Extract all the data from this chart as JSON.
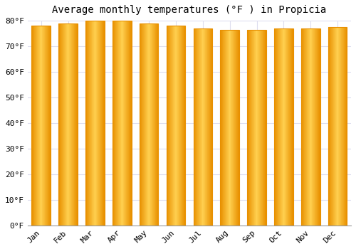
{
  "title": "Average monthly temperatures (°F ) in Propicia",
  "months": [
    "Jan",
    "Feb",
    "Mar",
    "Apr",
    "May",
    "Jun",
    "Jul",
    "Aug",
    "Sep",
    "Oct",
    "Nov",
    "Dec"
  ],
  "values": [
    78,
    79,
    80,
    80,
    79,
    78,
    77,
    76.5,
    76.5,
    77,
    77,
    77.5
  ],
  "ylim": [
    0,
    80
  ],
  "yticks": [
    0,
    10,
    20,
    30,
    40,
    50,
    60,
    70,
    80
  ],
  "ytick_labels": [
    "0°F",
    "10°F",
    "20°F",
    "30°F",
    "40°F",
    "50°F",
    "60°F",
    "70°F",
    "80°F"
  ],
  "bar_center_color": "#FFD050",
  "bar_edge_color": "#E89000",
  "background_color": "#FFFFFF",
  "plot_bg_color": "#FFFFFF",
  "grid_color": "#DDDDEE",
  "title_fontsize": 10,
  "tick_fontsize": 8,
  "font_family": "monospace"
}
